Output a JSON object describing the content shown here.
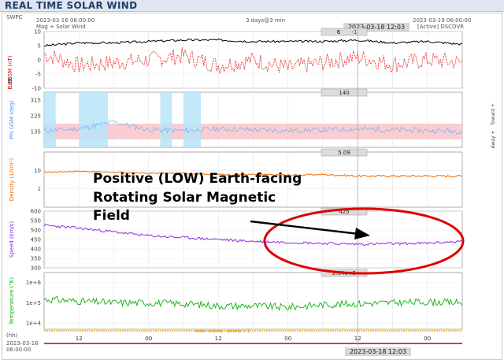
{
  "page": {
    "title": "REAL TIME SOLAR WIND"
  },
  "header": {
    "org": "SWPC",
    "start_time": "2023-03-16 06:00:00",
    "data_label": "Mag + Solar Wind",
    "span": "3 days@3 min",
    "cursor_time": "2023-03-18 12:03",
    "end_time": "2023-03-19 06:00:00",
    "source": "[Active] DSCOVR"
  },
  "colors": {
    "bt": "#000000",
    "bz": "#e60000",
    "phi": "#3399ff",
    "density": "#ee6a00",
    "speed": "#8a2be2",
    "temperature": "#10b010",
    "annotation_ellipse": "#e00000",
    "arrow": "#000000"
  },
  "annotation": {
    "line1": "Positive (LOW) Earth-facing",
    "line2": "Rotating Solar Magnetic",
    "line3": "Field"
  },
  "legend_strip": {
    "enter": "enter",
    "outside": "outside",
    "density": "density < 1"
  },
  "footer": {
    "hhh": "(hh)",
    "date": "2023-03-16",
    "time": "06:00:00",
    "ticks": [
      "12",
      "00",
      "12",
      "00",
      "12",
      "00"
    ],
    "cursor_time": "2023-03-18 12:03"
  },
  "chart_data": [
    {
      "type": "line",
      "ylabel": "Bt, Bz GSM (nT)",
      "ylim": [
        -10,
        10
      ],
      "yticks": [
        "10",
        "5",
        "0",
        "-5",
        "-10"
      ],
      "readout": [
        "6",
        "-1"
      ],
      "series": [
        {
          "name": "Bt",
          "x": [
            0,
            6,
            12,
            18,
            24,
            30,
            36,
            42,
            48,
            54,
            60,
            66,
            72
          ],
          "values": [
            5,
            6,
            6,
            6.5,
            7,
            7,
            6.5,
            6.5,
            6.5,
            7,
            6,
            6.5,
            5.5
          ]
        },
        {
          "name": "Bz",
          "x": [
            0,
            6,
            12,
            18,
            24,
            30,
            36,
            42,
            48,
            54,
            60,
            66,
            72
          ],
          "values": [
            2,
            -2,
            -1,
            0,
            1.5,
            -2,
            0,
            -3,
            -1,
            1,
            -1.5,
            0,
            -1
          ]
        }
      ]
    },
    {
      "type": "scatter",
      "ylabel": "Phi GSM (deg)",
      "ylim": [
        45,
        360
      ],
      "yticks": [
        "315",
        "225",
        "135"
      ],
      "right_labels": [
        "Toward",
        "Away"
      ],
      "readout": "140",
      "series": [
        {
          "name": "Phi",
          "x": [
            0,
            6,
            12,
            18,
            24,
            30,
            36,
            42,
            48,
            54,
            60,
            66,
            72
          ],
          "values": [
            140,
            150,
            190,
            145,
            140,
            150,
            145,
            140,
            145,
            150,
            145,
            140,
            138
          ]
        }
      ]
    },
    {
      "type": "line",
      "ylabel": "Density (1/cm³)",
      "scale": "log",
      "ylim": [
        0.1,
        100
      ],
      "yticks": [
        "10",
        "1"
      ],
      "readout": "5.09",
      "series": [
        {
          "name": "Density",
          "x": [
            0,
            6,
            12,
            18,
            24,
            30,
            36,
            42,
            48,
            54,
            60,
            66,
            72
          ],
          "values": [
            8,
            9,
            8,
            7,
            7,
            6,
            6,
            5.5,
            6,
            5,
            5,
            5,
            5
          ]
        }
      ]
    },
    {
      "type": "line",
      "ylabel": "Speed (km/s)",
      "ylim": [
        300,
        600
      ],
      "yticks": [
        "600",
        "550",
        "500",
        "450",
        "400",
        "350",
        "300"
      ],
      "readout": "425",
      "series": [
        {
          "name": "Speed",
          "x": [
            0,
            6,
            12,
            18,
            24,
            30,
            36,
            42,
            48,
            54,
            60,
            66,
            72
          ],
          "values": [
            525,
            510,
            490,
            470,
            460,
            450,
            440,
            435,
            430,
            425,
            428,
            430,
            440
          ]
        }
      ]
    },
    {
      "type": "line",
      "ylabel": "Temperature (°K)",
      "scale": "log",
      "ylim": [
        5000,
        3000000
      ],
      "yticks": [
        "1e+6",
        "1e+5",
        "1e+4"
      ],
      "readout": "2.04e+5",
      "series": [
        {
          "name": "Temperature",
          "x": [
            0,
            6,
            12,
            18,
            24,
            30,
            36,
            42,
            48,
            54,
            60,
            66,
            72
          ],
          "values": [
            150000,
            120000,
            100000,
            100000,
            90000,
            70000,
            70000,
            60000,
            80000,
            90000,
            100000,
            110000,
            100000
          ]
        }
      ]
    }
  ]
}
